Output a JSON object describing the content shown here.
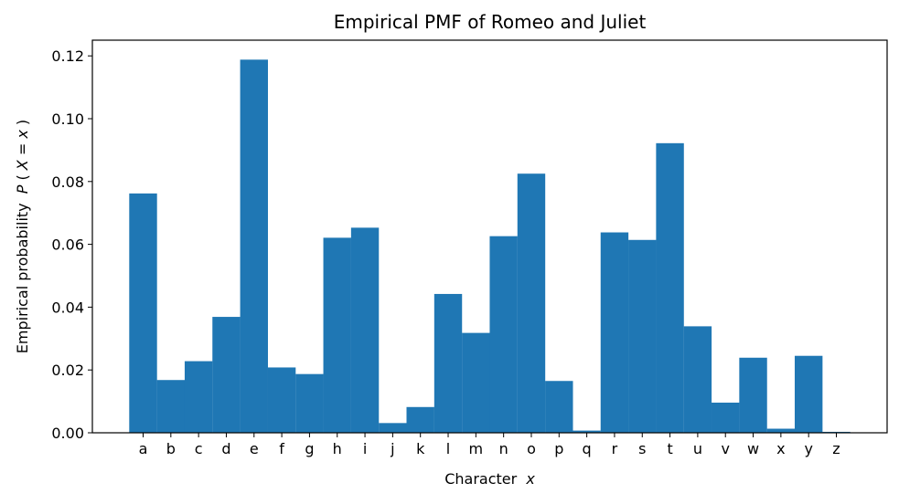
{
  "chart_data": {
    "type": "bar",
    "title": "Empirical PMF of Romeo and Juliet",
    "xlabel": "Character",
    "xlabel_var": "x",
    "ylabel": "Empirical probability",
    "ylabel_expr_prefix": "P(",
    "ylabel_expr_var1": "X",
    "ylabel_expr_eq": " = ",
    "ylabel_expr_var2": "x",
    "ylabel_expr_suffix": ")",
    "categories": [
      "a",
      "b",
      "c",
      "d",
      "e",
      "f",
      "g",
      "h",
      "i",
      "j",
      "k",
      "l",
      "m",
      "n",
      "o",
      "p",
      "q",
      "r",
      "s",
      "t",
      "u",
      "v",
      "w",
      "x",
      "y",
      "z"
    ],
    "values": [
      0.0762,
      0.0168,
      0.0228,
      0.0369,
      0.1188,
      0.0208,
      0.0187,
      0.0621,
      0.0653,
      0.0031,
      0.0082,
      0.0442,
      0.0318,
      0.0626,
      0.0825,
      0.0165,
      0.0007,
      0.0638,
      0.0614,
      0.0922,
      0.0339,
      0.0096,
      0.0239,
      0.0013,
      0.0245,
      0.0003
    ],
    "ylim": [
      0,
      0.125
    ],
    "yticks": [
      0.0,
      0.02,
      0.04,
      0.06,
      0.08,
      0.1,
      0.12
    ],
    "ytick_labels": [
      "0.00",
      "0.02",
      "0.04",
      "0.06",
      "0.08",
      "0.10",
      "0.12"
    ],
    "grid": false,
    "bar_color": "#1f77b4"
  }
}
